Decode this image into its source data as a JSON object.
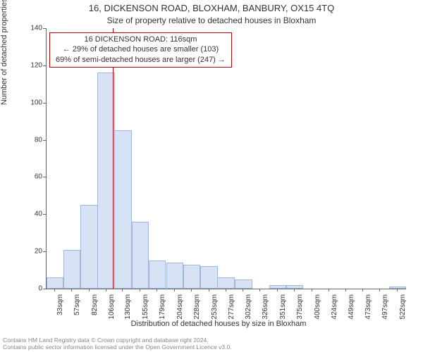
{
  "title": "16, DICKENSON ROAD, BLOXHAM, BANBURY, OX15 4TQ",
  "subtitle": "Size of property relative to detached houses in Bloxham",
  "callout": {
    "line1": "16 DICKENSON ROAD: 116sqm",
    "line2": "← 29% of detached houses are smaller (103)",
    "line3": "69% of semi-detached houses are larger (247) →",
    "border_color": "#c00000"
  },
  "ylabel": "Number of detached properties",
  "xlabel": "Distribution of detached houses by size in Bloxham",
  "chart": {
    "type": "histogram",
    "background_color": "#ffffff",
    "bar_fill": "#d7e2f4",
    "bar_border": "#9cb8de",
    "axis_color": "#666666",
    "marker_line_color": "#c00000",
    "marker_x": 116,
    "xlim": [
      21,
      534
    ],
    "ylim": [
      0,
      140
    ],
    "ytick_step": 20,
    "bin_width_sqm": 24.5,
    "x_ticks": [
      33,
      57,
      82,
      106,
      130,
      155,
      179,
      204,
      228,
      253,
      277,
      302,
      326,
      351,
      375,
      400,
      424,
      449,
      473,
      497,
      522
    ],
    "bins": [
      {
        "x": 33,
        "count": 6
      },
      {
        "x": 57,
        "count": 21
      },
      {
        "x": 82,
        "count": 45
      },
      {
        "x": 106,
        "count": 116
      },
      {
        "x": 130,
        "count": 85
      },
      {
        "x": 155,
        "count": 36
      },
      {
        "x": 179,
        "count": 15
      },
      {
        "x": 204,
        "count": 14
      },
      {
        "x": 228,
        "count": 13
      },
      {
        "x": 253,
        "count": 12
      },
      {
        "x": 277,
        "count": 6
      },
      {
        "x": 302,
        "count": 5
      },
      {
        "x": 326,
        "count": 0
      },
      {
        "x": 351,
        "count": 2
      },
      {
        "x": 375,
        "count": 2
      },
      {
        "x": 400,
        "count": 0
      },
      {
        "x": 424,
        "count": 0
      },
      {
        "x": 449,
        "count": 0
      },
      {
        "x": 473,
        "count": 0
      },
      {
        "x": 497,
        "count": 0
      },
      {
        "x": 522,
        "count": 1
      }
    ]
  },
  "footer": {
    "line1": "Contains HM Land Registry data © Crown copyright and database right 2024.",
    "line2": "Contains public sector information licensed under the Open Government Licence v3.0."
  },
  "fonts": {
    "title_size": 13,
    "subtitle_size": 12,
    "axis_label_size": 11,
    "tick_size": 10,
    "footer_size": 8.5
  }
}
